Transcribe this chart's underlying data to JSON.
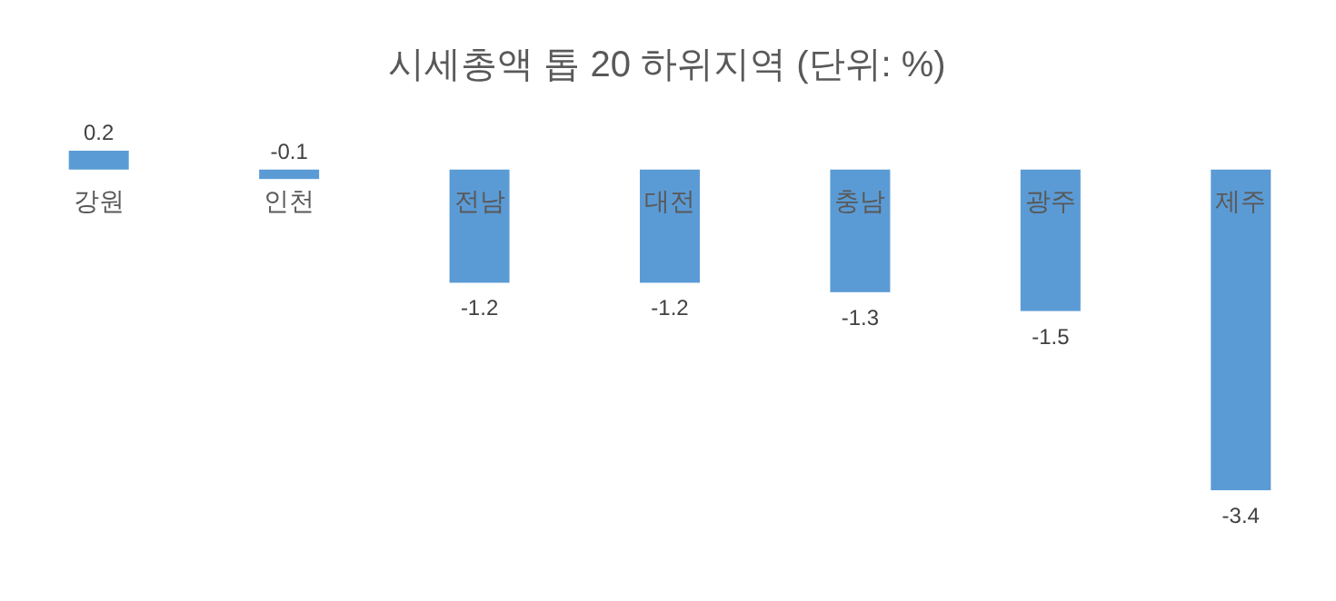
{
  "chart_data": {
    "type": "bar",
    "title": "시세총액 톱 20 하위지역 (단위: %)",
    "categories": [
      "강원",
      "인천",
      "전남",
      "대전",
      "충남",
      "광주",
      "제주"
    ],
    "values": [
      0.2,
      -0.1,
      -1.2,
      -1.2,
      -1.3,
      -1.5,
      -3.4
    ],
    "color": "#5b9bd5",
    "data_labels": true
  }
}
